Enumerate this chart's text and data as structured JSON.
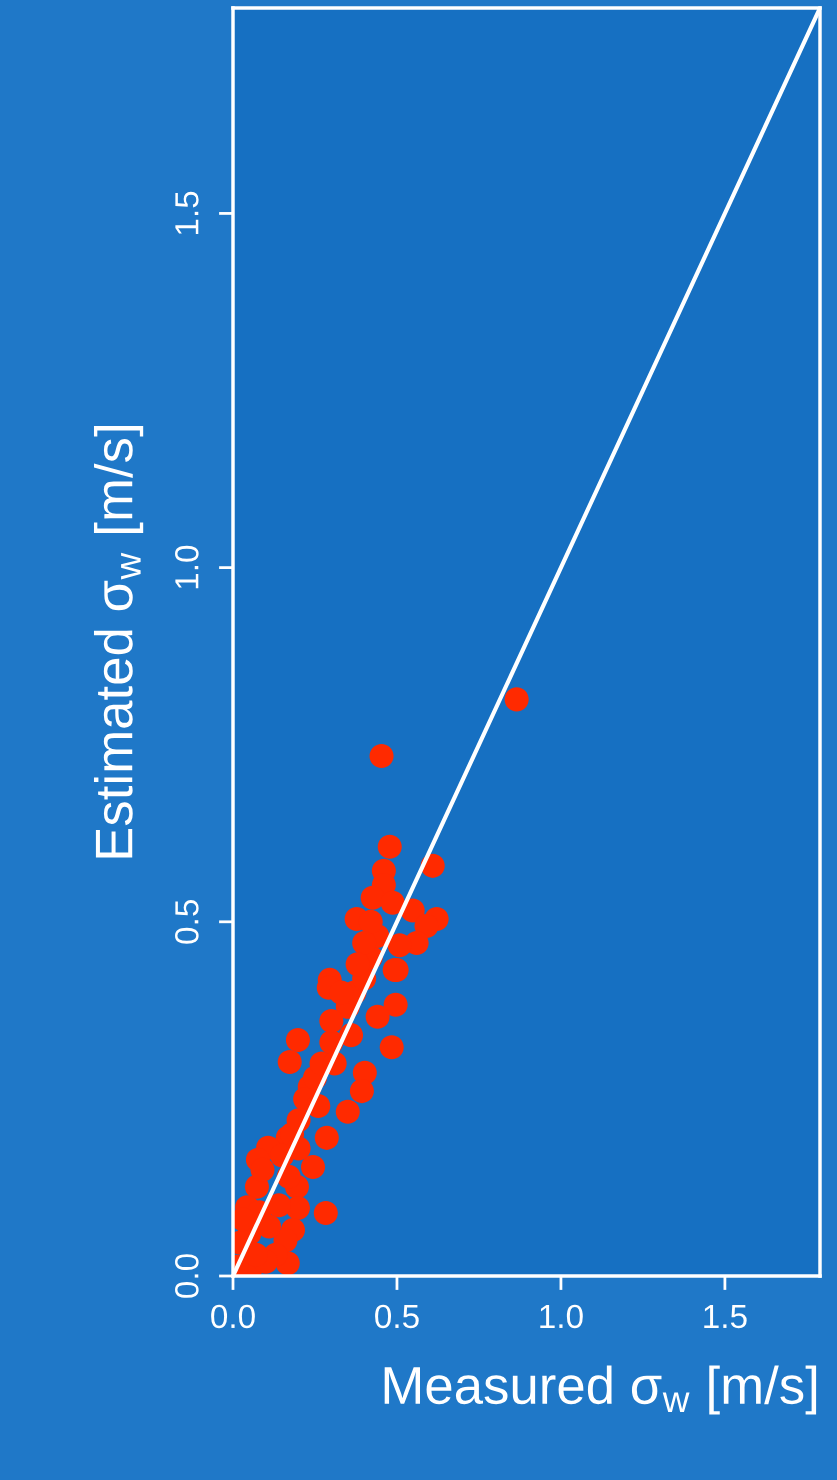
{
  "chart_data": {
    "type": "scatter",
    "xlabel": "Measured σ$_{w}$ [m/s]",
    "ylabel": "Estimated σ$_{w}$ [m/s]",
    "xlim": [
      0,
      1.79
    ],
    "ylim": [
      0,
      1.79
    ],
    "xticks": [
      {
        "value": 0,
        "label": "0.0"
      },
      {
        "value": 0.5,
        "label": "0.5"
      },
      {
        "value": 1.0,
        "label": "1.0"
      },
      {
        "value": 1.5,
        "label": "1.5"
      }
    ],
    "yticks": [
      {
        "value": 0,
        "label": "0.0"
      },
      {
        "value": 0.5,
        "label": "0.5"
      },
      {
        "value": 1.0,
        "label": "1.0"
      },
      {
        "value": 1.5,
        "label": "1.5"
      }
    ],
    "grid": false,
    "legend": false,
    "marker": "circle",
    "series": [
      {
        "color": "#ff2a00",
        "x": [
          0.865,
          0.453,
          0.478,
          0.609,
          0.46,
          0.46,
          0.426,
          0.487,
          0.548,
          0.377,
          0.621,
          0.59,
          0.56,
          0.508,
          0.493,
          0.295,
          0.499,
          0.292,
          0.496,
          0.441,
          0.198,
          0.484,
          0.173,
          0.402,
          0.234,
          0.393,
          0.35,
          0.286,
          0.167,
          0.107,
          0.244,
          0.076,
          0.073,
          0.195,
          0.198,
          0.283,
          0.043,
          0.183,
          0.167,
          0.021,
          0.052,
          0.012,
          0.05,
          0.08,
          0.15,
          0.18,
          0.2,
          0.22,
          0.25,
          0.27,
          0.3,
          0.35,
          0.37,
          0.4,
          0.42,
          0.44,
          0.42,
          0.4,
          0.38,
          0.33,
          0.3,
          0.03,
          0.09,
          0.14,
          0.16,
          0.13,
          0.1,
          0.07,
          0.11,
          0.17,
          0.2,
          0.26,
          0.31,
          0.36
        ],
        "values": [
          0.814,
          0.734,
          0.606,
          0.579,
          0.572,
          0.552,
          0.534,
          0.527,
          0.516,
          0.504,
          0.504,
          0.494,
          0.47,
          0.467,
          0.432,
          0.418,
          0.432,
          0.407,
          0.383,
          0.366,
          0.333,
          0.323,
          0.302,
          0.287,
          0.267,
          0.261,
          0.232,
          0.195,
          0.195,
          0.181,
          0.154,
          0.164,
          0.126,
          0.126,
          0.096,
          0.089,
          0.097,
          0.065,
          0.018,
          0.047,
          0.008,
          0.013,
          0.06,
          0.09,
          0.17,
          0.2,
          0.22,
          0.25,
          0.28,
          0.3,
          0.33,
          0.38,
          0.4,
          0.42,
          0.45,
          0.48,
          0.5,
          0.47,
          0.44,
          0.4,
          0.36,
          0.08,
          0.15,
          0.1,
          0.05,
          0.03,
          0.02,
          0.03,
          0.07,
          0.14,
          0.18,
          0.24,
          0.3,
          0.34
        ]
      },
      {
        "type": "line",
        "color": "#ffffff",
        "x": [
          0,
          1.79
        ],
        "values": [
          0,
          1.79
        ],
        "marker": "none",
        "line_style": "solid"
      }
    ]
  }
}
